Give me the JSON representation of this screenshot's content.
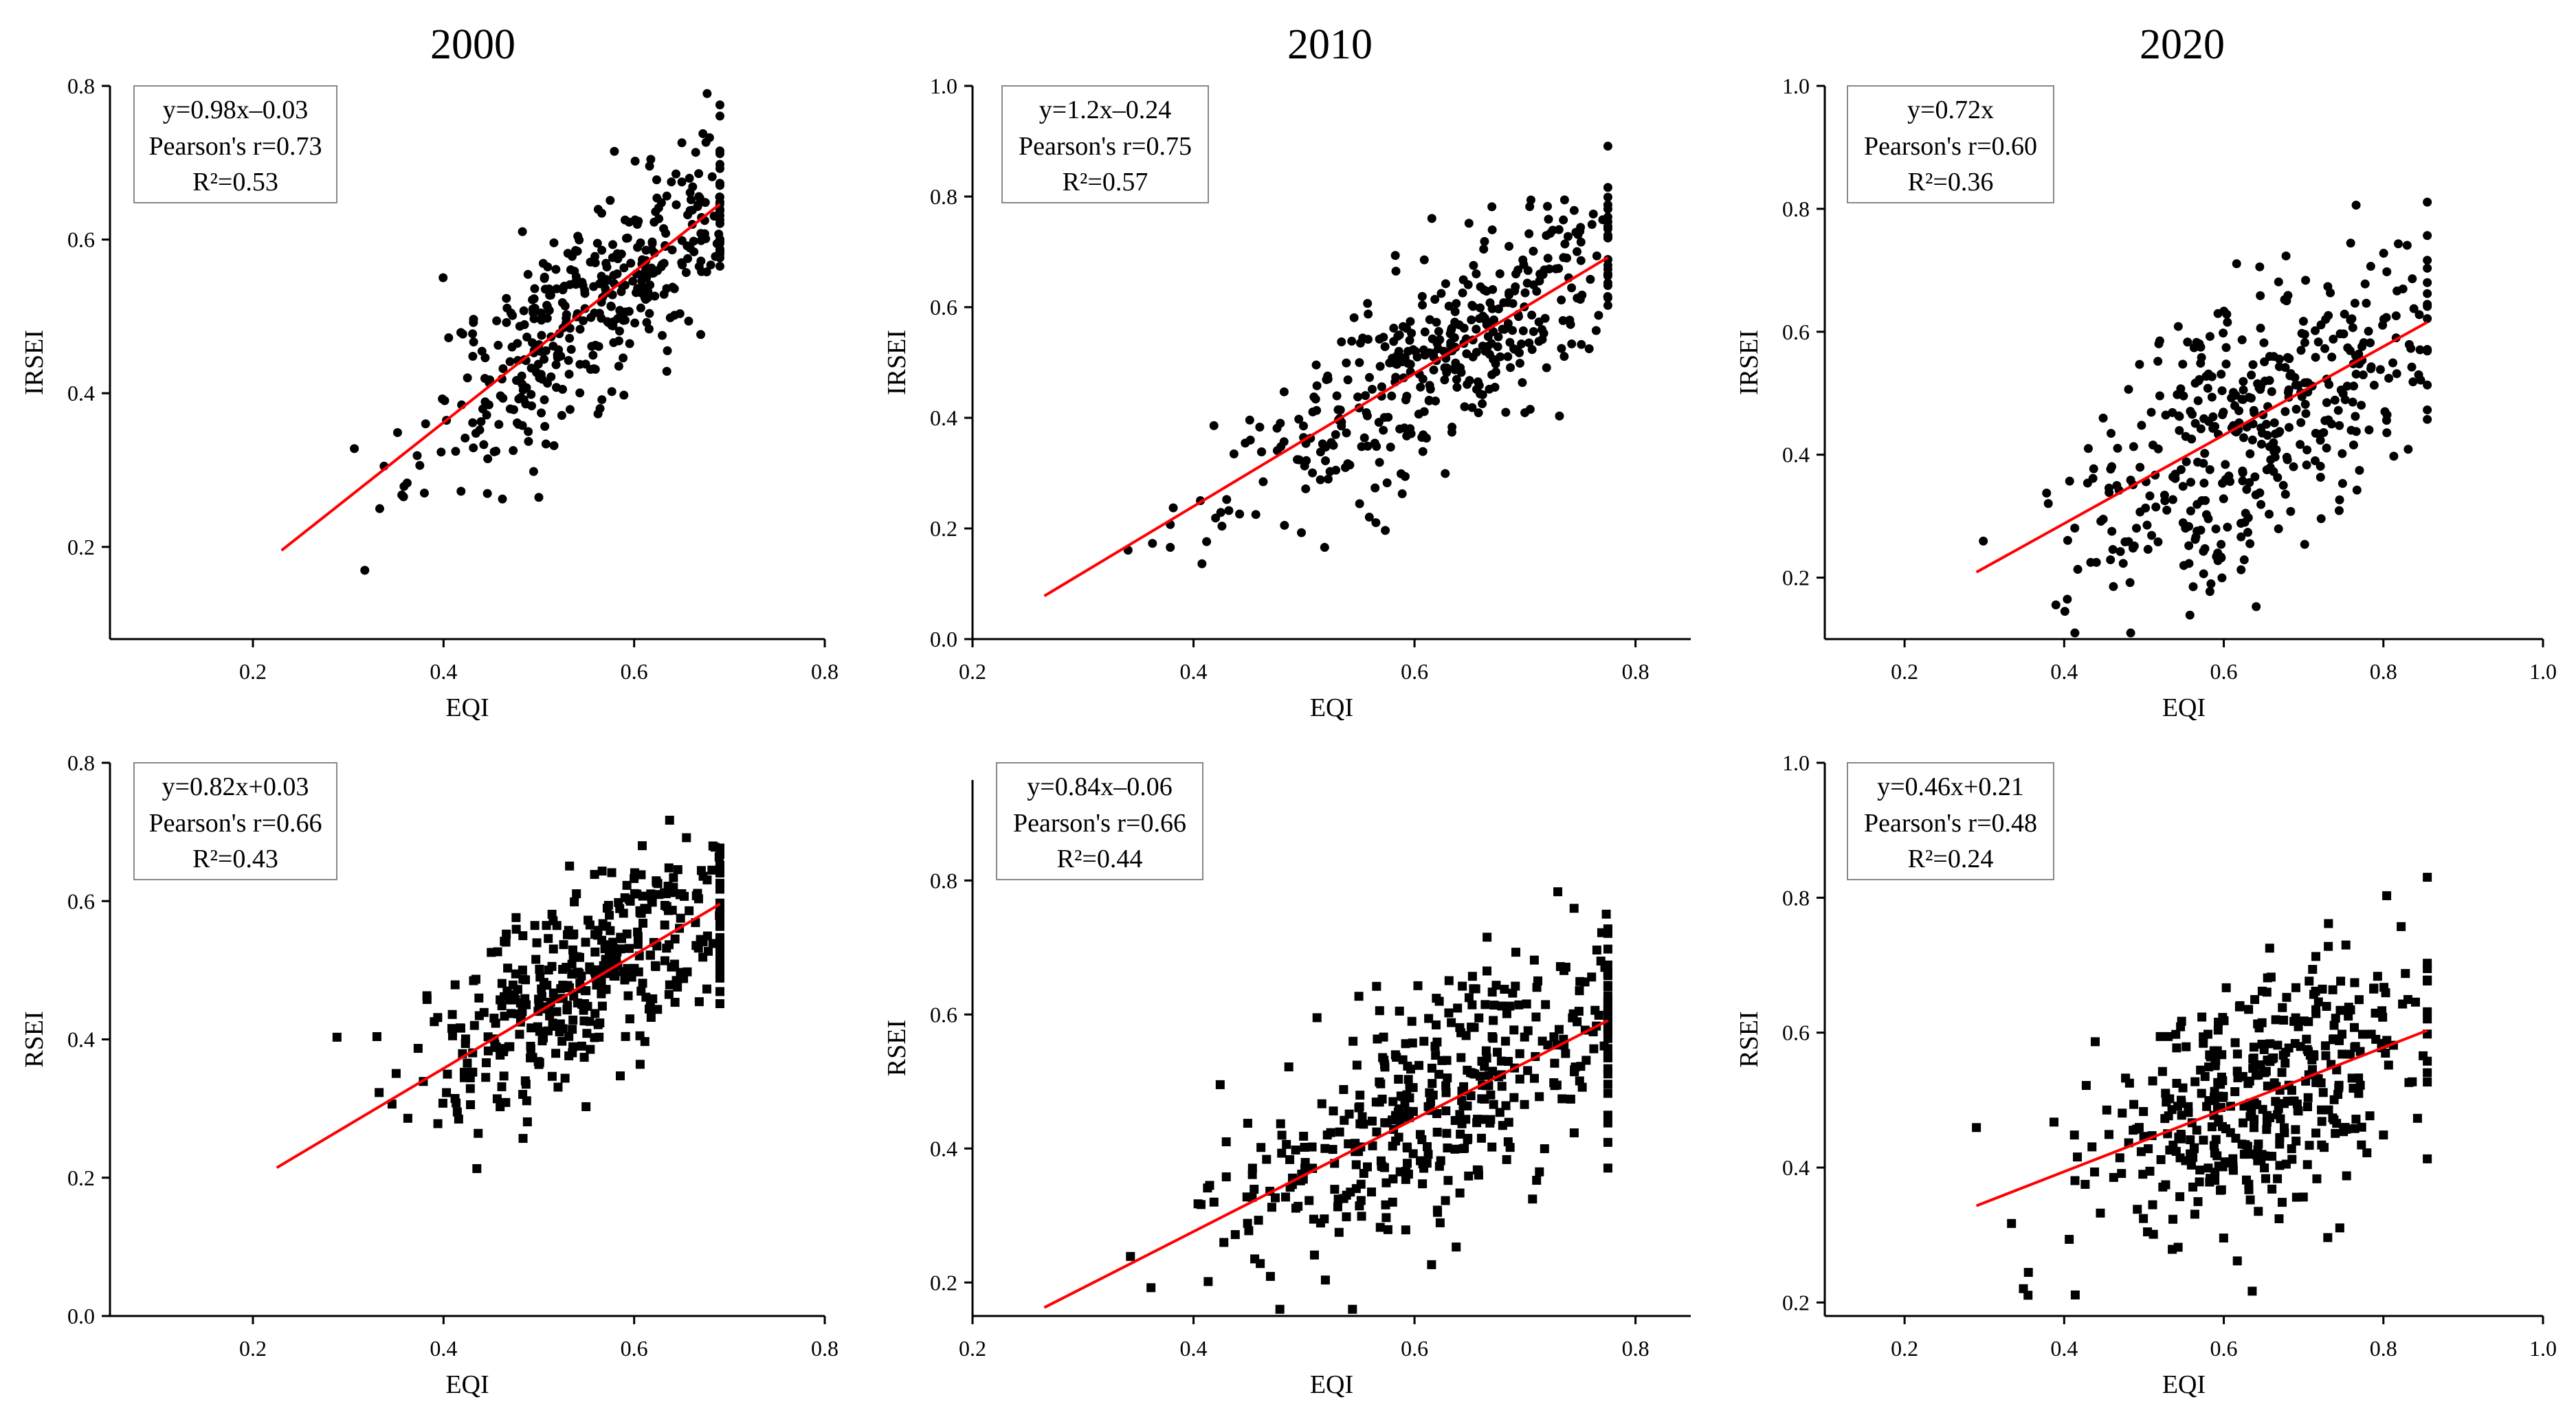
{
  "colors": {
    "points": "#000000",
    "fit_line": "#ff0000",
    "axis": "#000000",
    "stats_box_border": "#888888"
  },
  "years": [
    "2000",
    "2010",
    "2020"
  ],
  "chart_data": [
    {
      "id": "irsei-2000",
      "type": "scatter",
      "marker": "circle",
      "year": "2000",
      "xlabel": "EQI",
      "ylabel": "IRSEI",
      "xlim": [
        0.05,
        0.8
      ],
      "ylim": [
        0.08,
        0.8
      ],
      "xticks": [
        "0.2",
        "0.4",
        "0.6",
        "0.8"
      ],
      "yticks": [
        "0.2",
        "0.4",
        "0.6",
        "0.8"
      ],
      "xtick_values": [
        0.2,
        0.4,
        0.6,
        0.8
      ],
      "ytick_values": [
        0.2,
        0.4,
        0.6,
        0.8
      ],
      "fit": {
        "slope": 0.98,
        "intercept": -0.03,
        "x_range": [
          0.23,
          0.69
        ]
      },
      "stats": {
        "equation": "y=0.98x–0.03",
        "pearson": "Pearson's r=0.73",
        "r2": "R²=0.53"
      },
      "scatter": {
        "n": 420,
        "x_center": 0.56,
        "x_spread": 0.09,
        "x_range": [
          0.23,
          0.69
        ],
        "noise": 0.065,
        "seed": 11
      }
    },
    {
      "id": "irsei-2010",
      "type": "scatter",
      "marker": "circle",
      "year": "2010",
      "xlabel": "EQI",
      "ylabel": "IRSEI",
      "xlim": [
        0.2,
        0.85
      ],
      "ylim": [
        0.0,
        1.0
      ],
      "xticks": [
        "0.2",
        "0.4",
        "0.6",
        "0.8"
      ],
      "yticks": [
        "0.0",
        "0.2",
        "0.4",
        "0.6",
        "0.8",
        "1.0"
      ],
      "xtick_values": [
        0.2,
        0.4,
        0.6,
        0.8
      ],
      "ytick_values": [
        0.0,
        0.2,
        0.4,
        0.6,
        0.8,
        1.0
      ],
      "fit": {
        "slope": 1.2,
        "intercept": -0.24,
        "x_range": [
          0.265,
          0.775
        ]
      },
      "stats": {
        "equation": "y=1.2x–0.24",
        "pearson": "Pearson's r=0.75",
        "r2": "R²=0.57"
      },
      "scatter": {
        "n": 420,
        "x_center": 0.62,
        "x_spread": 0.095,
        "x_range": [
          0.265,
          0.775
        ],
        "noise": 0.085,
        "seed": 23
      }
    },
    {
      "id": "irsei-2020",
      "type": "scatter",
      "marker": "circle",
      "year": "2020",
      "xlabel": "EQI",
      "ylabel": "IRSEI",
      "xlim": [
        0.1,
        1.0
      ],
      "ylim": [
        0.1,
        1.0
      ],
      "xticks": [
        "0.2",
        "0.4",
        "0.6",
        "0.8",
        "1.0"
      ],
      "yticks": [
        "0.2",
        "0.4",
        "0.6",
        "0.8",
        "1.0"
      ],
      "xtick_values": [
        0.2,
        0.4,
        0.6,
        0.8,
        1.0
      ],
      "ytick_values": [
        0.2,
        0.4,
        0.6,
        0.8,
        1.0
      ],
      "fit": {
        "slope": 0.72,
        "intercept": 0.0,
        "x_range": [
          0.29,
          0.855
        ]
      },
      "stats": {
        "equation": "y=0.72x",
        "pearson": "Pearson's r=0.60",
        "r2": "R²=0.36"
      },
      "scatter": {
        "n": 420,
        "x_center": 0.64,
        "x_spread": 0.11,
        "x_range": [
          0.29,
          0.855
        ],
        "noise": 0.11,
        "seed": 37
      }
    },
    {
      "id": "rsei-2000",
      "type": "scatter",
      "marker": "square",
      "year": "2000",
      "xlabel": "EQI",
      "ylabel": "RSEI",
      "xlim": [
        0.05,
        0.8
      ],
      "ylim": [
        0.0,
        0.8
      ],
      "xticks": [
        "0.2",
        "0.4",
        "0.6",
        "0.8"
      ],
      "yticks": [
        "0.0",
        "0.2",
        "0.4",
        "0.6",
        "0.8"
      ],
      "xtick_values": [
        0.2,
        0.4,
        0.6,
        0.8
      ],
      "ytick_values": [
        0.0,
        0.2,
        0.4,
        0.6,
        0.8
      ],
      "fit": {
        "slope": 0.82,
        "intercept": 0.03,
        "x_range": [
          0.225,
          0.69
        ]
      },
      "stats": {
        "equation": "y=0.82x+0.03",
        "pearson": "Pearson's r=0.66",
        "r2": "R²=0.43"
      },
      "scatter": {
        "n": 420,
        "x_center": 0.56,
        "x_spread": 0.09,
        "x_range": [
          0.225,
          0.69
        ],
        "noise": 0.07,
        "seed": 51
      }
    },
    {
      "id": "rsei-2010",
      "type": "scatter",
      "marker": "square",
      "year": "2010",
      "xlabel": "EQI",
      "ylabel": "RSEI",
      "xlim": [
        0.2,
        0.85
      ],
      "ylim": [
        0.15,
        0.95
      ],
      "xticks": [
        "0.2",
        "0.4",
        "0.6",
        "0.8"
      ],
      "yticks": [
        "0.2",
        "0.4",
        "0.6",
        "0.8"
      ],
      "xtick_values": [
        0.2,
        0.4,
        0.6,
        0.8
      ],
      "ytick_values": [
        0.2,
        0.4,
        0.6,
        0.8
      ],
      "fit": {
        "slope": 0.84,
        "intercept": -0.06,
        "x_range": [
          0.265,
          0.775
        ]
      },
      "stats": {
        "equation": "y=0.84x–0.06",
        "pearson": "Pearson's r=0.66",
        "r2": "R²=0.44"
      },
      "scatter": {
        "n": 420,
        "x_center": 0.62,
        "x_spread": 0.095,
        "x_range": [
          0.265,
          0.775
        ],
        "noise": 0.085,
        "seed": 67
      }
    },
    {
      "id": "rsei-2020",
      "type": "scatter",
      "marker": "square",
      "year": "2020",
      "xlabel": "EQI",
      "ylabel": "RSEI",
      "xlim": [
        0.1,
        1.0
      ],
      "ylim": [
        0.18,
        1.0
      ],
      "xticks": [
        "0.2",
        "0.4",
        "0.6",
        "0.8",
        "1.0"
      ],
      "yticks": [
        "0.2",
        "0.4",
        "0.6",
        "0.8",
        "1.0"
      ],
      "xtick_values": [
        0.2,
        0.4,
        0.6,
        0.8,
        1.0
      ],
      "ytick_values": [
        0.2,
        0.4,
        0.6,
        0.8,
        1.0
      ],
      "fit": {
        "slope": 0.46,
        "intercept": 0.21,
        "x_range": [
          0.29,
          0.855
        ]
      },
      "stats": {
        "equation": "y=0.46x+0.21",
        "pearson": "Pearson's r=0.48",
        "r2": "R²=0.24"
      },
      "scatter": {
        "n": 420,
        "x_center": 0.64,
        "x_spread": 0.11,
        "x_range": [
          0.29,
          0.855
        ],
        "noise": 0.09,
        "seed": 83
      }
    }
  ]
}
